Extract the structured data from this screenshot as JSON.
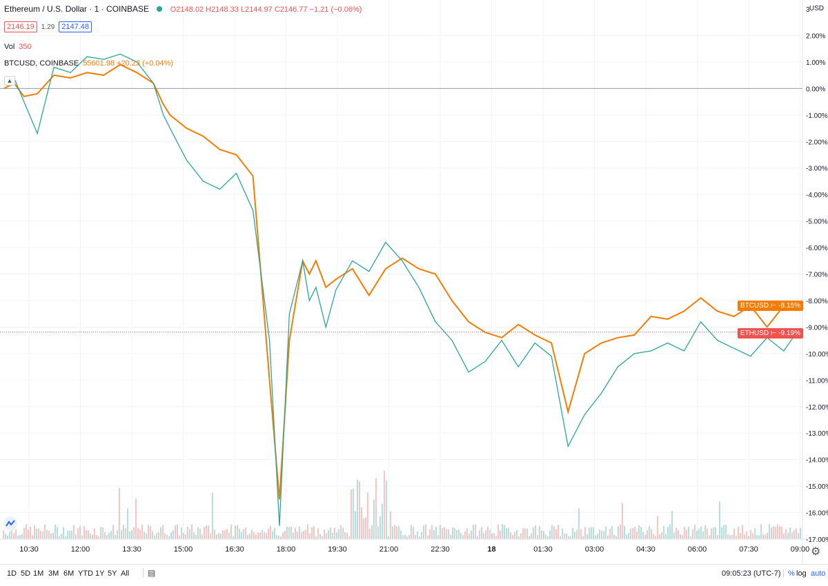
{
  "header": {
    "symbol_title": "Ethereum / U.S. Dollar · 1 · COINBASE",
    "ohlc": "O2148.02 H2148.33 L2144.97 C2146.77 −1.21 (−0.06%)",
    "bid": "2146.19",
    "spread": "1.29",
    "ask": "2147.48",
    "vol_label": "Vol",
    "vol_value": "350",
    "compare_symbol": "BTCUSD, COINBASE",
    "compare_value": "55601.98 +20.23 (+0.04%)",
    "currency": "USD"
  },
  "tags": {
    "btc": "BTCUSD ⊢ -8.15%",
    "eth": "ETHUSD ⊢ -9.19%"
  },
  "bottom": {
    "timeframes": [
      "1D",
      "5D",
      "1M",
      "3M",
      "6M",
      "YTD",
      "1Y",
      "5Y",
      "All"
    ],
    "clock": "09:05:23 (UTC-7)",
    "percent": "%",
    "log": "log",
    "auto": "auto"
  },
  "colors": {
    "eth": "#26a69a",
    "eth_down": "#ef5350",
    "btc": "#f57c00",
    "accent": "#2962ff"
  },
  "chart_data": {
    "type": "line",
    "title": "Ethereum / U.S. Dollar · 1 · COINBASE",
    "y_axis_labels": [
      "3",
      "2.00%",
      "1.00%",
      "0.00%",
      "-1.00%",
      "-2.00%",
      "-3.00%",
      "-4.00%",
      "-5.00%",
      "-6.00%",
      "-7.00%",
      "-8.00%",
      "-9.00%",
      "-10.00%",
      "-11.00%",
      "-12.00%",
      "-13.00%",
      "-14.00%",
      "-15.00%",
      "-16.00%",
      "-17.00%"
    ],
    "x_axis_labels": [
      "10:30",
      "12:00",
      "13:30",
      "15:00",
      "16:30",
      "18:00",
      "19:30",
      "21:00",
      "22:30",
      "18",
      "01:30",
      "03:00",
      "04:30",
      "06:00",
      "07:30",
      "09:00"
    ],
    "ylim": [
      -17,
      3
    ],
    "series": [
      {
        "name": "BTCUSD",
        "x": [
          0,
          0.3,
          0.6,
          1,
          1.5,
          2,
          2.5,
          3,
          3.5,
          4,
          4.5,
          4.8,
          5,
          5.5,
          6,
          6.5,
          7,
          7.5,
          8,
          8.3,
          8.6,
          9,
          9.2,
          9.4,
          9.7,
          10,
          10.5,
          11,
          11.5,
          12,
          12.5,
          13,
          13.5,
          14,
          14.5,
          15,
          15.5,
          16,
          16.5,
          17,
          17.5,
          18,
          18.5,
          19,
          19.5,
          20,
          20.5,
          21,
          21.5,
          22,
          22.5,
          23,
          23.5,
          23.9
        ],
        "values": [
          0,
          0.2,
          -0.3,
          -0.2,
          0.5,
          0.4,
          0.6,
          0.5,
          0.9,
          0.6,
          0.2,
          -0.6,
          -1.0,
          -1.5,
          -1.8,
          -2.3,
          -2.5,
          -3.3,
          -11.0,
          -15.5,
          -9.5,
          -6.5,
          -7.0,
          -6.5,
          -7.5,
          -7.2,
          -6.8,
          -7.8,
          -6.8,
          -6.4,
          -6.8,
          -7.0,
          -8.0,
          -8.8,
          -9.2,
          -9.4,
          -8.9,
          -9.3,
          -9.6,
          -12.2,
          -10.0,
          -9.6,
          -9.4,
          -9.3,
          -8.6,
          -8.7,
          -8.4,
          -7.9,
          -8.4,
          -8.6,
          -8.2,
          -9.0,
          -8.2,
          -8.15
        ]
      },
      {
        "name": "ETHUSD",
        "x": [
          0,
          0.3,
          0.6,
          1,
          1.5,
          2,
          2.5,
          3,
          3.5,
          4,
          4.5,
          4.8,
          5,
          5.5,
          6,
          6.5,
          7,
          7.5,
          8,
          8.3,
          8.6,
          9,
          9.2,
          9.4,
          9.7,
          10,
          10.5,
          11,
          11.5,
          12,
          12.5,
          13,
          13.5,
          14,
          14.5,
          15,
          15.5,
          16,
          16.5,
          17,
          17.5,
          18,
          18.5,
          19,
          19.5,
          20,
          20.5,
          21,
          21.5,
          22,
          22.5,
          23,
          23.5,
          23.9
        ],
        "values": [
          0.2,
          0.4,
          -0.5,
          -1.7,
          0.8,
          0.6,
          1.2,
          1.1,
          1.3,
          1.0,
          0.2,
          -1.0,
          -1.5,
          -2.7,
          -3.5,
          -3.8,
          -3.2,
          -4.6,
          -9.5,
          -16.5,
          -8.5,
          -6.5,
          -8.0,
          -7.5,
          -9.0,
          -7.6,
          -6.5,
          -6.9,
          -5.8,
          -6.5,
          -7.5,
          -8.8,
          -9.5,
          -10.7,
          -10.3,
          -9.5,
          -10.5,
          -9.6,
          -10.1,
          -13.5,
          -12.3,
          -11.5,
          -10.5,
          -10.0,
          -9.9,
          -9.6,
          -9.9,
          -8.8,
          -9.5,
          -9.8,
          -10.1,
          -9.4,
          -9.9,
          -9.19
        ]
      }
    ],
    "grid": true
  }
}
